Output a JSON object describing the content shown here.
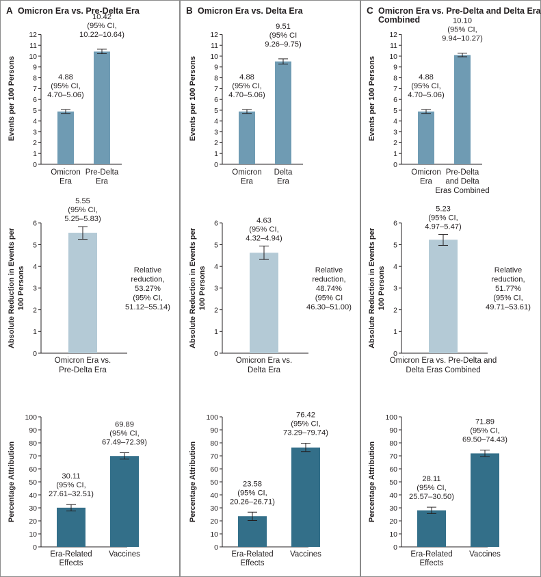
{
  "colors": {
    "bar_top": "#6f9bb3",
    "bar_mid": "#b4cad6",
    "bar_bottom": "#336f89",
    "border": "#8a8a8a",
    "text": "#231f20"
  },
  "panels": [
    {
      "letter": "A",
      "title": [
        "Omicron Era vs. Pre-Delta Era"
      ],
      "events": {
        "ylabel": "Events per 100 Persons",
        "bars": [
          {
            "label": [
              "Omicron",
              "Era"
            ],
            "value": 4.88,
            "ci": [
              4.7,
              5.06
            ],
            "annotation": [
              "4.88",
              "(95% CI,",
              "4.70–5.06)"
            ]
          },
          {
            "label": [
              "Pre-Delta",
              "Era"
            ],
            "value": 10.42,
            "ci": [
              10.22,
              10.64
            ],
            "annotation": [
              "10.42",
              "(95% CI,",
              "10.22–10.64)"
            ]
          }
        ]
      },
      "reduction": {
        "ylabel": [
          "Absolute Reduction in Events per",
          "100 Persons"
        ],
        "label": [
          "Omicron Era vs.",
          "Pre-Delta Era"
        ],
        "value": 5.55,
        "ci": [
          5.25,
          5.83
        ],
        "annotation": [
          "5.55",
          "(95% CI,",
          "5.25–5.83)"
        ],
        "relative": [
          "Relative",
          "reduction,",
          "53.27%",
          "(95% CI,",
          "51.12–55.14)"
        ]
      },
      "attribution": {
        "ylabel": "Percentage Attribution",
        "bars": [
          {
            "label": [
              "Era-Related",
              "Effects"
            ],
            "value": 30.11,
            "ci": [
              27.61,
              32.51
            ],
            "annotation": [
              "30.11",
              "(95% CI,",
              "27.61–32.51)"
            ]
          },
          {
            "label": [
              "Vaccines"
            ],
            "value": 69.89,
            "ci": [
              67.49,
              72.39
            ],
            "annotation": [
              "69.89",
              "(95% CI,",
              "67.49–72.39)"
            ]
          }
        ]
      }
    },
    {
      "letter": "B",
      "title": [
        "Omicron Era vs. Delta Era"
      ],
      "events": {
        "ylabel": "Events per 100 Persons",
        "bars": [
          {
            "label": [
              "Omicron",
              "Era"
            ],
            "value": 4.88,
            "ci": [
              4.7,
              5.06
            ],
            "annotation": [
              "4.88",
              "(95% CI,",
              "4.70–5.06)"
            ]
          },
          {
            "label": [
              "Delta",
              "Era"
            ],
            "value": 9.51,
            "ci": [
              9.26,
              9.75
            ],
            "annotation": [
              "9.51",
              "(95% CI",
              "9.26–9.75)"
            ]
          }
        ]
      },
      "reduction": {
        "ylabel": [
          "Absolute Reduction in Events per",
          "100 Persons"
        ],
        "label": [
          "Omicron Era vs.",
          "Delta Era"
        ],
        "value": 4.63,
        "ci": [
          4.32,
          4.94
        ],
        "annotation": [
          "4.63",
          "(95% CI,",
          "4.32–4.94)"
        ],
        "relative": [
          "Relative",
          "reduction,",
          "48.74%",
          "(95% CI",
          "46.30–51.00)"
        ]
      },
      "attribution": {
        "ylabel": "Percentage Attribution",
        "bars": [
          {
            "label": [
              "Era-Related",
              "Effects"
            ],
            "value": 23.58,
            "ci": [
              20.26,
              26.71
            ],
            "annotation": [
              "23.58",
              "(95% CI,",
              "20.26–26.71)"
            ]
          },
          {
            "label": [
              "Vaccines"
            ],
            "value": 76.42,
            "ci": [
              73.29,
              79.74
            ],
            "annotation": [
              "76.42",
              "(95% CI,",
              "73.29–79.74)"
            ]
          }
        ]
      }
    },
    {
      "letter": "C",
      "title": [
        "Omicron Era vs. Pre-Delta and Delta Eras",
        "Combined"
      ],
      "events": {
        "ylabel": "Events per 100 Persons",
        "bars": [
          {
            "label": [
              "Omicron",
              "Era"
            ],
            "value": 4.88,
            "ci": [
              4.7,
              5.06
            ],
            "annotation": [
              "4.88",
              "(95% CI,",
              "4.70–5.06)"
            ]
          },
          {
            "label": [
              "Pre-Delta",
              "and Delta",
              "Eras Combined"
            ],
            "value": 10.1,
            "ci": [
              9.94,
              10.27
            ],
            "annotation": [
              "10.10",
              "(95% CI,",
              "9.94–10.27)"
            ]
          }
        ]
      },
      "reduction": {
        "ylabel": [
          "Absolute Reduction in Events per",
          "100 Persons"
        ],
        "label": [
          "Omicron Era vs. Pre-Delta and",
          "Delta Eras Combined"
        ],
        "value": 5.23,
        "ci": [
          4.97,
          5.47
        ],
        "annotation": [
          "5.23",
          "(95% CI,",
          "4.97–5.47)"
        ],
        "relative": [
          "Relative",
          "reduction,",
          "51.77%",
          "(95% CI,",
          "49.71–53.61)"
        ]
      },
      "attribution": {
        "ylabel": "Percentage Attribution",
        "bars": [
          {
            "label": [
              "Era-Related",
              "Effects"
            ],
            "value": 28.11,
            "ci": [
              25.57,
              30.5
            ],
            "annotation": [
              "28.11",
              "(95% CI,",
              "25.57–30.50)"
            ]
          },
          {
            "label": [
              "Vaccines"
            ],
            "value": 71.89,
            "ci": [
              69.5,
              74.43
            ],
            "annotation": [
              "71.89",
              "(95% CI,",
              "69.50–74.43)"
            ]
          }
        ]
      }
    }
  ],
  "chart_data": [
    {
      "type": "bar",
      "panel": "A",
      "title": "Omicron Era vs. Pre-Delta Era",
      "ylabel": "Events per 100 Persons",
      "categories": [
        "Omicron Era",
        "Pre-Delta Era"
      ],
      "values": [
        4.88,
        10.42
      ],
      "ci_low": [
        4.7,
        10.22
      ],
      "ci_high": [
        5.06,
        10.64
      ],
      "ylim": [
        0,
        12
      ],
      "yticks": [
        0,
        1,
        2,
        3,
        4,
        5,
        6,
        7,
        8,
        9,
        10,
        11,
        12
      ]
    },
    {
      "type": "bar",
      "panel": "A",
      "ylabel": "Absolute Reduction in Events per 100 Persons",
      "categories": [
        "Omicron Era vs. Pre-Delta Era"
      ],
      "values": [
        5.55
      ],
      "ci_low": [
        5.25
      ],
      "ci_high": [
        5.83
      ],
      "ylim": [
        0,
        6
      ],
      "yticks": [
        0,
        1,
        2,
        3,
        4,
        5,
        6
      ],
      "relative_reduction_pct": 53.27,
      "relative_ci": [
        51.12,
        55.14
      ]
    },
    {
      "type": "bar",
      "panel": "A",
      "ylabel": "Percentage Attribution",
      "categories": [
        "Era-Related Effects",
        "Vaccines"
      ],
      "values": [
        30.11,
        69.89
      ],
      "ci_low": [
        27.61,
        67.49
      ],
      "ci_high": [
        32.51,
        72.39
      ],
      "ylim": [
        0,
        100
      ],
      "yticks": [
        0,
        10,
        20,
        30,
        40,
        50,
        60,
        70,
        80,
        90,
        100
      ]
    },
    {
      "type": "bar",
      "panel": "B",
      "title": "Omicron Era vs. Delta Era",
      "ylabel": "Events per 100 Persons",
      "categories": [
        "Omicron Era",
        "Delta Era"
      ],
      "values": [
        4.88,
        9.51
      ],
      "ci_low": [
        4.7,
        9.26
      ],
      "ci_high": [
        5.06,
        9.75
      ],
      "ylim": [
        0,
        12
      ],
      "yticks": [
        0,
        1,
        2,
        3,
        4,
        5,
        6,
        7,
        8,
        9,
        10,
        11,
        12
      ]
    },
    {
      "type": "bar",
      "panel": "B",
      "ylabel": "Absolute Reduction in Events per 100 Persons",
      "categories": [
        "Omicron Era vs. Delta Era"
      ],
      "values": [
        4.63
      ],
      "ci_low": [
        4.32
      ],
      "ci_high": [
        4.94
      ],
      "ylim": [
        0,
        6
      ],
      "yticks": [
        0,
        1,
        2,
        3,
        4,
        5,
        6
      ],
      "relative_reduction_pct": 48.74,
      "relative_ci": [
        46.3,
        51.0
      ]
    },
    {
      "type": "bar",
      "panel": "B",
      "ylabel": "Percentage Attribution",
      "categories": [
        "Era-Related Effects",
        "Vaccines"
      ],
      "values": [
        23.58,
        76.42
      ],
      "ci_low": [
        20.26,
        73.29
      ],
      "ci_high": [
        26.71,
        79.74
      ],
      "ylim": [
        0,
        100
      ],
      "yticks": [
        0,
        10,
        20,
        30,
        40,
        50,
        60,
        70,
        80,
        90,
        100
      ]
    },
    {
      "type": "bar",
      "panel": "C",
      "title": "Omicron Era vs. Pre-Delta and Delta Eras Combined",
      "ylabel": "Events per 100 Persons",
      "categories": [
        "Omicron Era",
        "Pre-Delta and Delta Eras Combined"
      ],
      "values": [
        4.88,
        10.1
      ],
      "ci_low": [
        4.7,
        9.94
      ],
      "ci_high": [
        5.06,
        10.27
      ],
      "ylim": [
        0,
        12
      ],
      "yticks": [
        0,
        1,
        2,
        3,
        4,
        5,
        6,
        7,
        8,
        9,
        10,
        11,
        12
      ]
    },
    {
      "type": "bar",
      "panel": "C",
      "ylabel": "Absolute Reduction in Events per 100 Persons",
      "categories": [
        "Omicron Era vs. Pre-Delta and Delta Eras Combined"
      ],
      "values": [
        5.23
      ],
      "ci_low": [
        4.97
      ],
      "ci_high": [
        5.47
      ],
      "ylim": [
        0,
        6
      ],
      "yticks": [
        0,
        1,
        2,
        3,
        4,
        5,
        6
      ],
      "relative_reduction_pct": 51.77,
      "relative_ci": [
        49.71,
        53.61
      ]
    },
    {
      "type": "bar",
      "panel": "C",
      "ylabel": "Percentage Attribution",
      "categories": [
        "Era-Related Effects",
        "Vaccines"
      ],
      "values": [
        28.11,
        71.89
      ],
      "ci_low": [
        25.57,
        69.5
      ],
      "ci_high": [
        30.5,
        74.43
      ],
      "ylim": [
        0,
        100
      ],
      "yticks": [
        0,
        10,
        20,
        30,
        40,
        50,
        60,
        70,
        80,
        90,
        100
      ]
    }
  ]
}
